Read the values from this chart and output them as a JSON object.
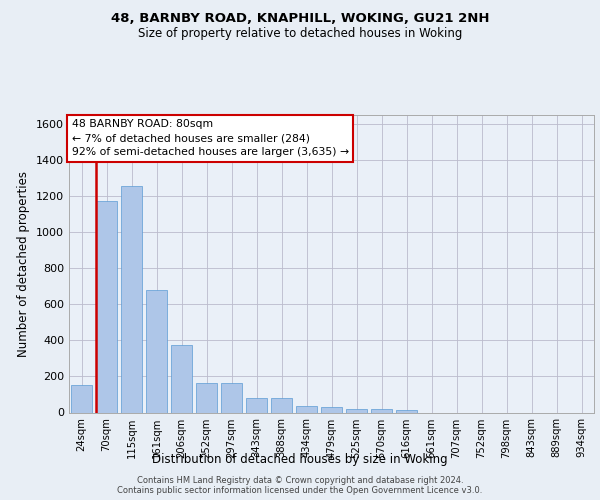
{
  "title_line1": "48, BARNBY ROAD, KNAPHILL, WOKING, GU21 2NH",
  "title_line2": "Size of property relative to detached houses in Woking",
  "xlabel": "Distribution of detached houses by size in Woking",
  "ylabel": "Number of detached properties",
  "bar_labels": [
    "24sqm",
    "70sqm",
    "115sqm",
    "161sqm",
    "206sqm",
    "252sqm",
    "297sqm",
    "343sqm",
    "388sqm",
    "434sqm",
    "479sqm",
    "525sqm",
    "570sqm",
    "616sqm",
    "661sqm",
    "707sqm",
    "752sqm",
    "798sqm",
    "843sqm",
    "889sqm",
    "934sqm"
  ],
  "bar_values": [
    150,
    1175,
    1255,
    680,
    375,
    165,
    165,
    80,
    80,
    35,
    30,
    20,
    20,
    12,
    0,
    0,
    0,
    0,
    0,
    0,
    0
  ],
  "bar_color": "#aec6e8",
  "bar_edge_color": "#5b9bd5",
  "highlight_bar_index": 1,
  "highlight_edge_color": "#cc0000",
  "ylim": [
    0,
    1650
  ],
  "yticks": [
    0,
    200,
    400,
    600,
    800,
    1000,
    1200,
    1400,
    1600
  ],
  "annotation_text": "48 BARNBY ROAD: 80sqm\n← 7% of detached houses are smaller (284)\n92% of semi-detached houses are larger (3,635) →",
  "annotation_box_color": "white",
  "annotation_box_edge_color": "#cc0000",
  "footer_text": "Contains HM Land Registry data © Crown copyright and database right 2024.\nContains public sector information licensed under the Open Government Licence v3.0.",
  "grid_color": "#bbbbcc",
  "bg_color": "#e8eef5",
  "plot_bg_color": "#eaf0f8"
}
